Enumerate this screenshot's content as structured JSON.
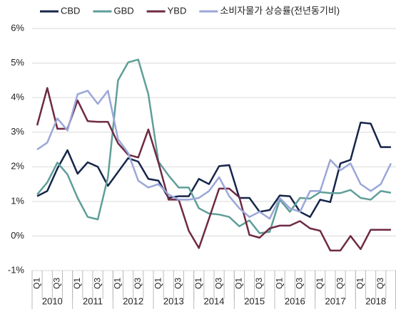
{
  "chart_data": {
    "type": "line",
    "categories": [
      "Q1",
      null,
      "Q3",
      null,
      "Q1",
      null,
      "Q3",
      null,
      "Q1",
      null,
      "Q3",
      null,
      "Q1",
      null,
      "Q3",
      null,
      "Q1",
      null,
      "Q3",
      null,
      "Q1",
      null,
      "Q3",
      null,
      "Q1",
      null,
      "Q3",
      null,
      "Q1",
      null,
      "Q3",
      null,
      "Q1",
      null,
      "Q3",
      null
    ],
    "years": [
      "2010",
      "2011",
      "2012",
      "2013",
      "2014",
      "2015",
      "2016",
      "2017",
      "2018"
    ],
    "series": [
      {
        "name": "CBD",
        "color": "#16254a",
        "values": [
          1.15,
          1.3,
          1.95,
          2.48,
          1.8,
          2.13,
          2.0,
          1.45,
          1.85,
          2.25,
          2.15,
          1.65,
          1.6,
          1.1,
          1.15,
          1.15,
          1.65,
          1.5,
          2.02,
          2.05,
          1.1,
          1.1,
          0.7,
          0.75,
          1.17,
          1.15,
          0.7,
          0.55,
          1.05,
          0.98,
          2.1,
          2.2,
          3.28,
          3.25,
          2.57,
          2.57
        ]
      },
      {
        "name": "GBD",
        "color": "#5f9e99",
        "values": [
          1.2,
          1.55,
          2.12,
          1.78,
          1.1,
          0.55,
          0.48,
          1.7,
          4.5,
          5.02,
          5.1,
          4.1,
          2.15,
          1.75,
          1.4,
          1.4,
          0.8,
          0.65,
          0.62,
          0.55,
          0.28,
          0.45,
          0.08,
          0.12,
          1.05,
          0.7,
          1.1,
          1.08,
          1.27,
          1.24,
          1.24,
          1.33,
          1.1,
          1.05,
          1.3,
          1.25
        ]
      },
      {
        "name": "YBD",
        "color": "#6e2a44",
        "values": [
          3.2,
          4.28,
          3.1,
          3.1,
          3.92,
          3.32,
          3.3,
          3.3,
          2.68,
          2.35,
          2.27,
          3.08,
          2.12,
          1.05,
          1.05,
          0.15,
          -0.35,
          0.5,
          1.37,
          1.37,
          1.12,
          0.03,
          -0.05,
          0.22,
          0.3,
          0.3,
          0.43,
          0.22,
          0.15,
          -0.42,
          -0.42,
          0,
          -0.38,
          0.18,
          0.18,
          0.18
        ]
      },
      {
        "name": "소비자물가 상승률(전년동기비)",
        "color": "#9ba7d8",
        "values": [
          2.5,
          2.7,
          3.4,
          3.05,
          4.1,
          4.2,
          3.82,
          4.2,
          2.8,
          2.4,
          1.6,
          1.4,
          1.5,
          1.2,
          1.05,
          1.05,
          1.1,
          1.3,
          1.7,
          1.15,
          0.8,
          0.55,
          0.7,
          0.5,
          1.1,
          0.8,
          0.7,
          1.3,
          1.3,
          2.2,
          1.9,
          2.1,
          1.5,
          1.3,
          1.5,
          2.1
        ]
      }
    ],
    "ylim": [
      -1,
      6
    ],
    "yticks": [
      {
        "value": -1,
        "label": "-1%"
      },
      {
        "value": 0,
        "label": "0%"
      },
      {
        "value": 1,
        "label": "1%"
      },
      {
        "value": 2,
        "label": "2%"
      },
      {
        "value": 3,
        "label": "3%"
      },
      {
        "value": 4,
        "label": "4%"
      },
      {
        "value": 5,
        "label": "5%"
      },
      {
        "value": 6,
        "label": "6%"
      }
    ],
    "grid": true,
    "legend": "top"
  }
}
